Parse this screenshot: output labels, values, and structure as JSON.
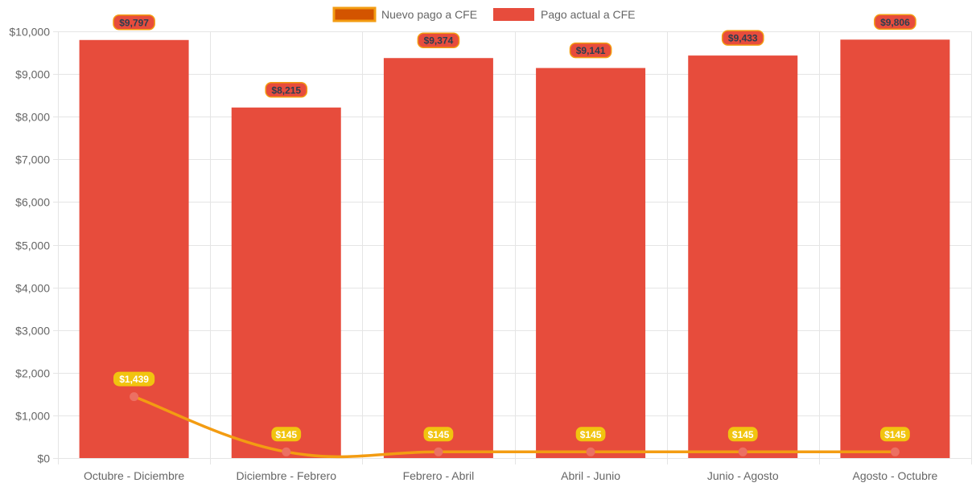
{
  "chart_data": {
    "type": "bar",
    "categories": [
      "Octubre - Diciembre",
      "Diciembre - Febrero",
      "Febrero - Abril",
      "Abril - Junio",
      "Junio - Agosto",
      "Agosto - Octubre"
    ],
    "series": [
      {
        "name": "Nuevo pago a CFE",
        "type": "line",
        "values": [
          1439,
          145,
          145,
          145,
          145,
          145
        ],
        "labels": [
          "$1,439",
          "$145",
          "$145",
          "$145",
          "$145",
          "$145"
        ],
        "color": "#f39c12",
        "legend_fill": "#d35400",
        "point_color": "#ec7063",
        "label_bg": "#f1c40f",
        "label_text_color": "#ffffff"
      },
      {
        "name": "Pago actual a CFE",
        "type": "bar",
        "values": [
          9797,
          8215,
          9374,
          9141,
          9433,
          9806
        ],
        "labels": [
          "$9,797",
          "$8,215",
          "$9,374",
          "$9,141",
          "$9,433",
          "$9,806"
        ],
        "color": "#e74c3c",
        "label_bg": "#e74c3c",
        "label_border": "#f39c12",
        "label_text_color": "#2c3e50"
      }
    ],
    "ylim": [
      0,
      10000
    ],
    "yticks": [
      0,
      1000,
      2000,
      3000,
      4000,
      5000,
      6000,
      7000,
      8000,
      9000,
      10000
    ],
    "ytick_labels": [
      "$0",
      "$1,000",
      "$2,000",
      "$3,000",
      "$4,000",
      "$5,000",
      "$6,000",
      "$7,000",
      "$8,000",
      "$9,000",
      "$10,000"
    ],
    "grid": true,
    "grid_color": "#e5e5e5",
    "axis_text_color": "#666666",
    "legend_position": "top-center"
  }
}
